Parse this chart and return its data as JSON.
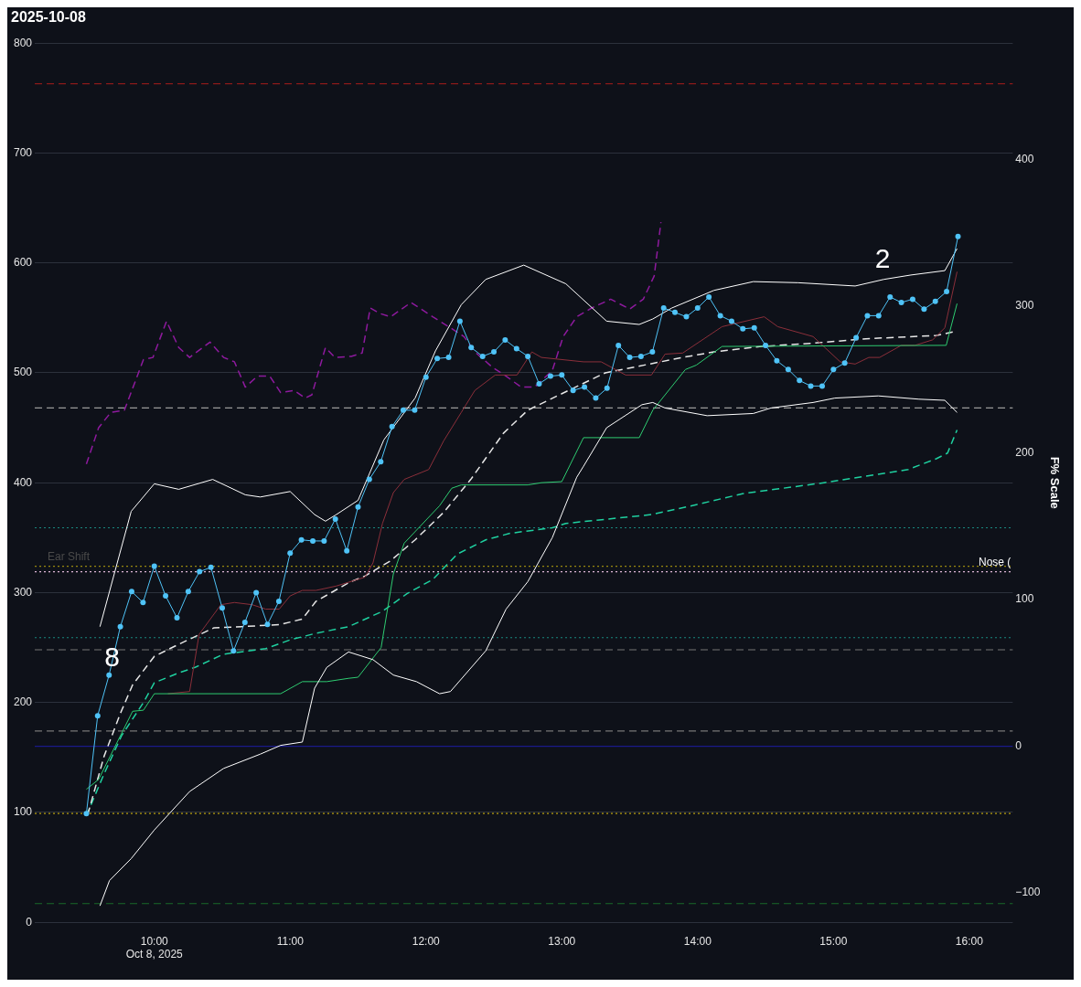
{
  "chart_data": {
    "type": "line",
    "title": "2025-10-08",
    "y2label": "F% Scale",
    "x": [
      9.5,
      9.583,
      9.667,
      9.75,
      9.833,
      9.917,
      10,
      10.083,
      10.167,
      10.25,
      10.333,
      10.417,
      10.5,
      10.583,
      10.667,
      10.75,
      10.833,
      10.917,
      11,
      11.083,
      11.167,
      11.25,
      11.333,
      11.417,
      11.5,
      11.583,
      11.667,
      11.75,
      11.833,
      11.917,
      12,
      12.083,
      12.167,
      12.25,
      12.333,
      12.417,
      12.5,
      12.583,
      12.667,
      12.75,
      12.833,
      12.917,
      13,
      13.083,
      13.167,
      13.25,
      13.333,
      13.417,
      13.5,
      13.583,
      13.667,
      13.75,
      13.833,
      13.917,
      14,
      14.083,
      14.167,
      14.25,
      14.333,
      14.417,
      14.5,
      14.583,
      14.667,
      14.75,
      14.833,
      14.917,
      15,
      15.083,
      15.167,
      15.25,
      15.333,
      15.417,
      15.5,
      15.583,
      15.667,
      15.75,
      15.833,
      15.917
    ],
    "series": [
      {
        "color": "#4fc3f7",
        "marker": "circle",
        "line_style": "solid",
        "values": [
          99,
          188,
          225,
          269,
          301,
          291,
          324,
          297,
          277,
          301,
          319,
          323,
          286,
          247,
          273,
          300,
          271,
          292,
          336,
          348,
          347,
          347,
          367,
          338,
          378,
          403,
          419,
          451,
          466,
          466,
          496,
          513,
          514,
          547,
          523,
          515,
          519,
          530,
          522,
          515,
          490,
          497,
          498,
          484,
          487,
          477,
          486,
          525,
          514,
          515,
          519,
          559,
          555,
          551,
          559,
          569,
          552,
          547,
          540,
          541,
          525,
          511,
          503,
          493,
          488,
          488,
          503,
          509,
          532,
          552,
          552,
          569,
          564,
          567,
          558,
          565,
          574,
          624
        ]
      },
      {
        "color": "#ffffff",
        "line_style": "solid",
        "x": [
          9.6,
          9.83,
          10.0,
          10.18,
          10.43,
          10.67,
          10.78,
          11.0,
          11.18,
          11.26,
          11.34,
          11.5,
          11.69,
          11.92,
          12.07,
          12.26,
          12.44,
          12.72,
          13.03,
          13.33,
          13.57,
          13.67,
          13.81,
          14.12,
          14.41,
          14.74,
          15.16,
          15.37,
          15.57,
          15.82,
          15.91
        ],
        "values": [
          269,
          374,
          399,
          394,
          403,
          389,
          387,
          392,
          371,
          365,
          371,
          384,
          439,
          477,
          520,
          562,
          585,
          598,
          581,
          547,
          544,
          549,
          559,
          575,
          583,
          582,
          579,
          585,
          589,
          593,
          613
        ]
      },
      {
        "color": "#ffffff",
        "line_style": "solid",
        "x": [
          9.6,
          9.67,
          9.83,
          10.0,
          10.26,
          10.51,
          10.78,
          10.93,
          11.09,
          11.18,
          11.27,
          11.43,
          11.61,
          11.76,
          11.93,
          12.1,
          12.18,
          12.44,
          12.59,
          12.75,
          12.93,
          13.11,
          13.16,
          13.33,
          13.59,
          13.67,
          13.76,
          14.07,
          14.41,
          14.54,
          14.85,
          15.01,
          15.33,
          15.63,
          15.82,
          15.91
        ],
        "values": [
          15,
          38,
          58,
          84,
          119,
          140,
          153,
          161,
          164,
          213,
          232,
          246,
          239,
          225,
          219,
          208,
          210,
          247,
          285,
          310,
          350,
          405,
          415,
          450,
          471,
          473,
          468,
          461,
          463,
          468,
          473,
          477,
          479,
          476,
          475,
          464
        ]
      },
      {
        "color": "#2ecc71",
        "line_style": "solid",
        "x": [
          9.5,
          9.59,
          9.84,
          9.92,
          10.0,
          10.93,
          11.09,
          11.27,
          11.43,
          11.5,
          11.67,
          11.76,
          11.84,
          12.1,
          12.19,
          12.26,
          12.75,
          12.85,
          13.0,
          13.16,
          13.57,
          13.67,
          13.91,
          13.99,
          14.18,
          15.83,
          15.91
        ],
        "values": [
          121,
          130,
          192,
          193,
          208,
          208,
          219,
          219,
          222,
          223,
          250,
          317,
          345,
          379,
          395,
          398,
          398,
          400,
          401,
          441,
          441,
          466,
          503,
          507,
          524,
          525,
          563
        ]
      },
      {
        "color": "#8b2f3a",
        "line_style": "solid",
        "x": [
          10.1,
          10.26,
          10.33,
          10.49,
          10.59,
          10.72,
          10.82,
          10.92,
          11.0,
          11.09,
          11.19,
          11.34,
          11.55,
          11.61,
          11.68,
          11.76,
          11.84,
          12.02,
          12.13,
          12.26,
          12.36,
          12.51,
          12.67,
          12.78,
          12.85,
          13.16,
          13.29,
          13.47,
          13.66,
          13.76,
          13.89,
          14.18,
          14.49,
          14.59,
          14.85,
          15.05,
          15.16,
          15.26,
          15.34,
          15.5,
          15.6,
          15.73,
          15.82,
          15.91
        ],
        "values": [
          208,
          210,
          262,
          289,
          291,
          289,
          285,
          285,
          297,
          302,
          302,
          306,
          314,
          327,
          363,
          391,
          403,
          412,
          438,
          464,
          484,
          498,
          498,
          519,
          514,
          510,
          510,
          498,
          498,
          517,
          518,
          542,
          551,
          542,
          533,
          510,
          508,
          514,
          514,
          525,
          525,
          530,
          541,
          592
        ]
      },
      {
        "color": "#8e1a9e",
        "line_style": "dashed",
        "x": [
          9.5,
          9.59,
          9.68,
          9.78,
          9.92,
          9.99,
          10.09,
          10.18,
          10.26,
          10.41,
          10.51,
          10.59,
          10.67,
          10.76,
          10.85,
          10.93,
          11.03,
          11.11,
          11.16,
          11.26,
          11.33,
          11.45,
          11.53,
          11.59,
          11.66,
          11.74,
          11.89,
          12.05,
          12.18,
          12.28,
          12.36,
          12.49,
          12.59,
          12.7,
          12.8,
          12.93,
          13.01,
          13.11,
          13.22,
          13.36,
          13.5,
          13.6,
          13.68,
          13.73
        ],
        "values": [
          417,
          450,
          464,
          466,
          512,
          514,
          547,
          523,
          514,
          528,
          514,
          510,
          487,
          497,
          497,
          482,
          484,
          477,
          480,
          523,
          514,
          515,
          518,
          559,
          554,
          551,
          564,
          551,
          541,
          533,
          519,
          505,
          497,
          487,
          487,
          502,
          533,
          551,
          559,
          567,
          558,
          567,
          588,
          637
        ]
      },
      {
        "color": "#e8e8e8",
        "line_style": "dashed",
        "x": [
          9.51,
          9.63,
          9.75,
          9.84,
          10.0,
          10.18,
          10.44,
          10.64,
          10.93,
          11.09,
          11.19,
          11.43,
          11.55,
          11.74,
          11.92,
          12.13,
          12.33,
          12.57,
          12.75,
          13.05,
          13.32,
          13.89,
          14.12,
          14.47,
          14.85,
          15.24,
          15.76,
          15.91
        ],
        "values": [
          98,
          151,
          190,
          216,
          242,
          253,
          268,
          269,
          271,
          276,
          292,
          309,
          315,
          329,
          348,
          373,
          403,
          445,
          466,
          484,
          500,
          514,
          519,
          524,
          527,
          531,
          534,
          538
        ]
      },
      {
        "color": "#1fd1a0",
        "line_style": "dashed",
        "x": [
          9.5,
          9.63,
          9.76,
          9.92,
          10.0,
          10.18,
          10.3,
          10.51,
          10.82,
          11.0,
          11.19,
          11.43,
          11.68,
          11.86,
          12.05,
          12.23,
          12.44,
          12.62,
          12.93,
          13.03,
          13.66,
          13.99,
          14.33,
          14.93,
          15.55,
          15.76,
          15.84,
          15.91
        ],
        "values": [
          97,
          135,
          170,
          200,
          218,
          227,
          232,
          244,
          249,
          257,
          263,
          269,
          283,
          299,
          312,
          335,
          348,
          354,
          359,
          363,
          371,
          380,
          390,
          400,
          412,
          422,
          427,
          448
        ]
      }
    ],
    "xlim": [
      9.12,
      16.32
    ],
    "xticks": [
      {
        "value": 10,
        "label": "10:00\nOct 8, 2025"
      },
      {
        "value": 11,
        "label": "11:00"
      },
      {
        "value": 12,
        "label": "12:00"
      },
      {
        "value": 13,
        "label": "13:00"
      },
      {
        "value": 14,
        "label": "14:00"
      },
      {
        "value": 15,
        "label": "15:00"
      },
      {
        "value": 16,
        "label": "16:00"
      }
    ],
    "ylim": [
      0,
      800
    ],
    "yticks": [
      0,
      100,
      200,
      300,
      400,
      500,
      600,
      700,
      800
    ],
    "y2lim": [
      -120,
      479.4
    ],
    "y2ticks": [
      {
        "value": -100,
        "label": "−100"
      },
      0,
      100,
      200,
      300,
      400
    ],
    "ref_lines": [
      {
        "axis": "y",
        "value": 763,
        "color": "#8b1a1a",
        "line_style": "dashed"
      },
      {
        "axis": "y",
        "value": 468,
        "color": "#9a9a9a",
        "line_style": "dashed"
      },
      {
        "axis": "y",
        "value": 359,
        "color": "#1a8a80",
        "line_style": "dotted"
      },
      {
        "axis": "y",
        "value": 324,
        "color": "#9a8a10",
        "line_style": "dotted",
        "label": "Ear Shift"
      },
      {
        "axis": "y",
        "value": 319,
        "color": "#e0b8d8",
        "line_style": "dotted",
        "label": "Nose ("
      },
      {
        "axis": "y",
        "value": 259,
        "color": "#1a8a80",
        "line_style": "dotted"
      },
      {
        "axis": "y",
        "value": 248,
        "color": "#777777",
        "line_style": "dashed"
      },
      {
        "axis": "y",
        "value": 174,
        "color": "#777777",
        "line_style": "dashed"
      },
      {
        "axis": "y2",
        "value": 0,
        "color": "#1a1a8a",
        "line_style": "solid"
      },
      {
        "axis": "y",
        "value": 99,
        "color": "#b8a010",
        "line_style": "dotted"
      },
      {
        "axis": "y",
        "value": 17,
        "color": "#1a6a2a",
        "line_style": "dashed"
      }
    ],
    "annotations": [
      "8",
      "2"
    ],
    "grid": "y",
    "legend": false
  }
}
